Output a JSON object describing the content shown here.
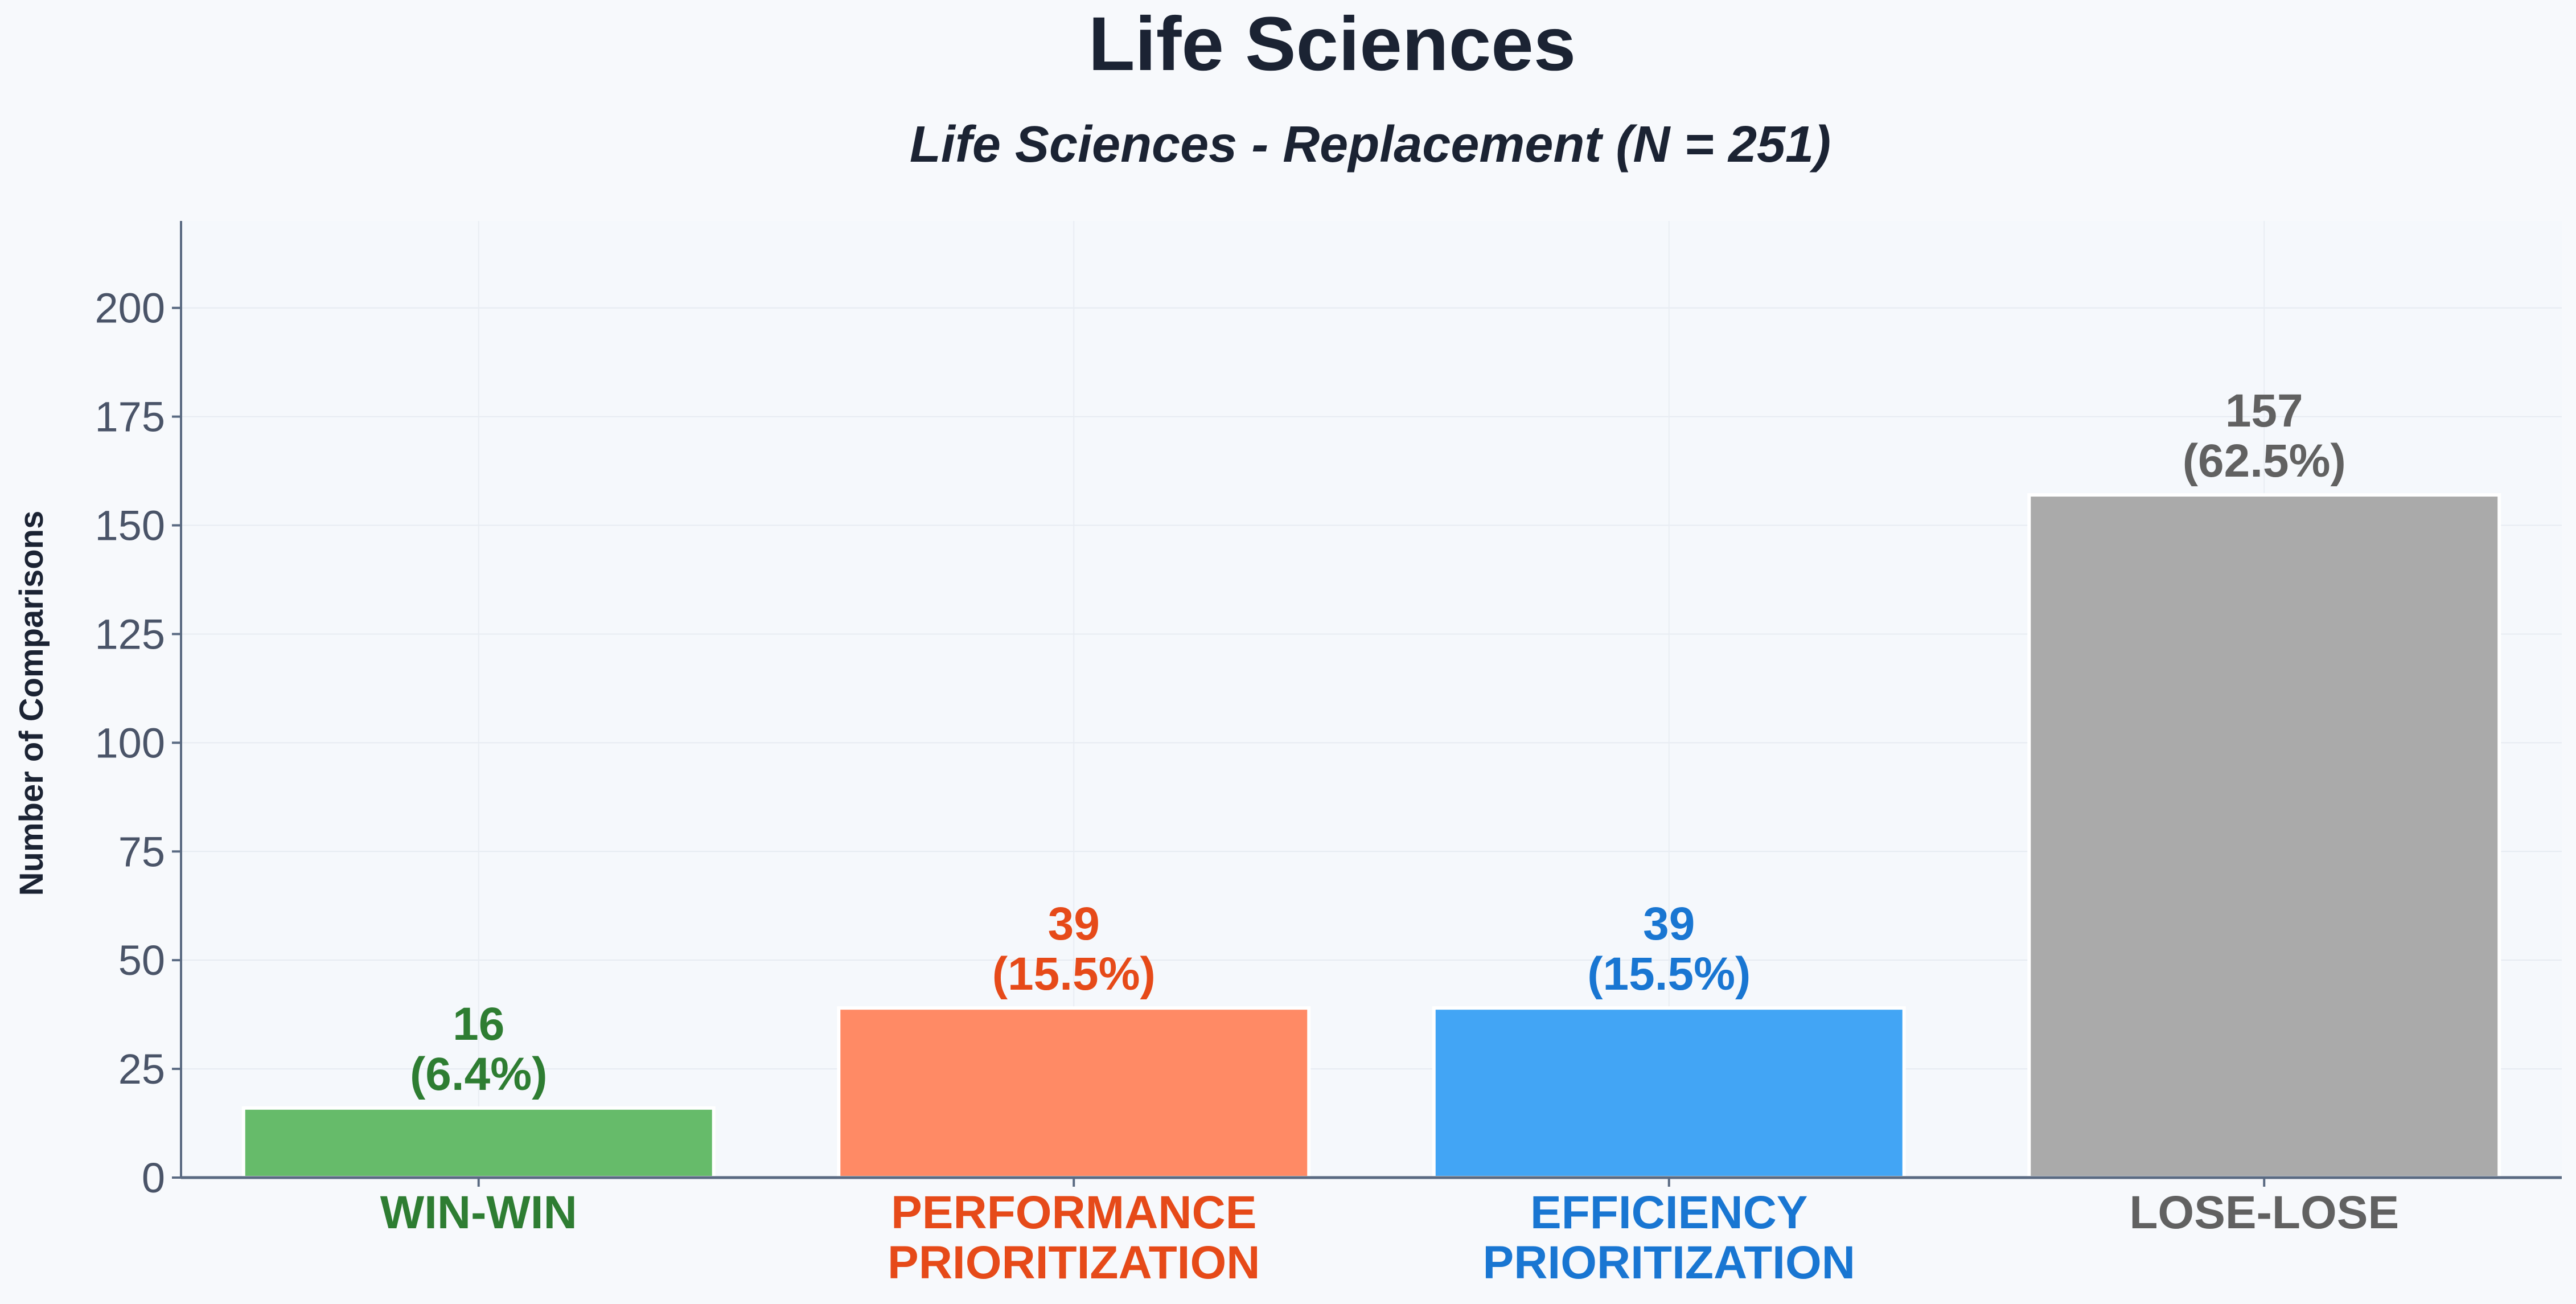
{
  "page": {
    "background": "#f7f9fc",
    "plot_background": "#f5f8fc"
  },
  "chart_data": {
    "type": "bar",
    "title": "Life Sciences",
    "subtitle": "Life Sciences - Replacement (N = 251)",
    "xlabel": "",
    "ylabel": "Number of Comparisons",
    "categories": [
      "WIN-WIN",
      "PERFORMANCE PRIORITIZATION",
      "EFFICIENCY PRIORITIZATION",
      "LOSE-LOSE"
    ],
    "category_lines": [
      [
        "WIN-WIN"
      ],
      [
        "PERFORMANCE",
        "PRIORITIZATION"
      ],
      [
        "EFFICIENCY",
        "PRIORITIZATION"
      ],
      [
        "LOSE-LOSE"
      ]
    ],
    "values": [
      16,
      39,
      39,
      157
    ],
    "percent_labels": [
      "(6.4%)",
      "(15.5%)",
      "(15.5%)",
      "(62.5%)"
    ],
    "bar_colors": [
      "#66bb6a",
      "#ff8a65",
      "#42a5f5",
      "#aaaaaa"
    ],
    "label_colors": [
      "#2e7d32",
      "#e64a19",
      "#1976d2",
      "#616161"
    ],
    "ylim": [
      0,
      220
    ],
    "yticks": [
      0,
      25,
      50,
      75,
      100,
      125,
      150,
      175,
      200
    ],
    "grid": true,
    "legend": "none"
  }
}
